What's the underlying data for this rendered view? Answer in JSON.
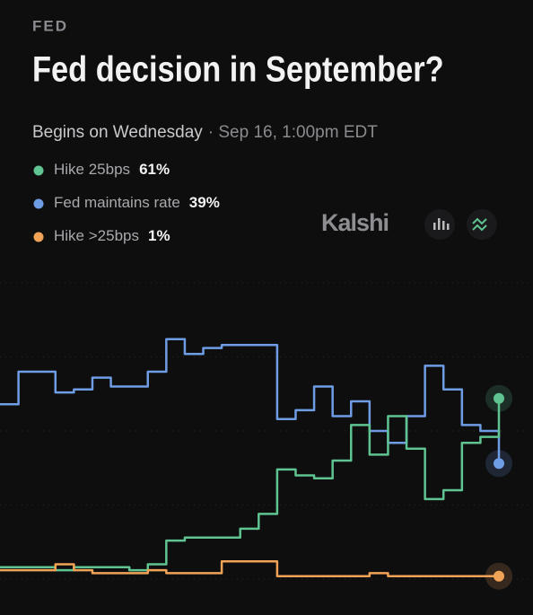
{
  "header": "FED",
  "brand": "Kalshi",
  "chart_data": {
    "type": "line",
    "title": "Fed decision in September?",
    "subtitle": "Begins on Wednesday",
    "date": "· Sep 16, 1:00pm EDT",
    "ylim": [
      0,
      100
    ],
    "yticks": [
      0,
      25,
      50,
      75,
      100
    ],
    "grid": true,
    "series": [
      {
        "name": "Hike 25bps",
        "color": "#5fc491",
        "value_label": "61%",
        "values": [
          4,
          4,
          4,
          3,
          4,
          4,
          4,
          3,
          5,
          13,
          14,
          14,
          14,
          17,
          22,
          37,
          35,
          34,
          40,
          52,
          42,
          55,
          44,
          27,
          30,
          46,
          48,
          61
        ]
      },
      {
        "name": "Fed maintains rate",
        "color": "#6e9de6",
        "value_label": "39%",
        "values": [
          59,
          70,
          70,
          63,
          64,
          68,
          65,
          65,
          70,
          81,
          76,
          78,
          79,
          79,
          79,
          54,
          57,
          65,
          55,
          60,
          50,
          46,
          55,
          72,
          64,
          52,
          50,
          39
        ]
      },
      {
        "name": "Hike >25bps",
        "color": "#f0a357",
        "value_label": "1%",
        "values": [
          3,
          3,
          3,
          5,
          3,
          2,
          2,
          2,
          3,
          2,
          2,
          2,
          6,
          6,
          6,
          1,
          1,
          1,
          1,
          1,
          2,
          1,
          1,
          1,
          1,
          1,
          1,
          1
        ]
      }
    ]
  }
}
